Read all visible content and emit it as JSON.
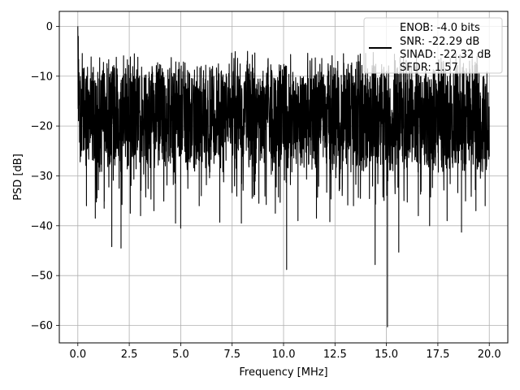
{
  "chart_data": {
    "type": "line",
    "title": "",
    "xlabel": "Frequency [MHz]",
    "ylabel": "PSD [dB]",
    "xlim": [
      -0.9,
      20.9
    ],
    "ylim": [
      -63.5,
      3.0
    ],
    "grid": true,
    "xticks": [
      0.0,
      2.5,
      5.0,
      7.5,
      10.0,
      12.5,
      15.0,
      17.5,
      20.0
    ],
    "xtick_labels": [
      "0.0",
      "2.5",
      "5.0",
      "7.5",
      "10.0",
      "12.5",
      "15.0",
      "17.5",
      "20.0"
    ],
    "yticks": [
      0,
      -10,
      -20,
      -30,
      -40,
      -50,
      -60
    ],
    "ytick_labels": [
      "0",
      "−10",
      "−20",
      "−30",
      "−40",
      "−50",
      "−60"
    ],
    "legend": {
      "position": "top-right",
      "lines": [
        "ENOB: -4.0 bits",
        "SNR: -22.29 dB",
        "SINAD: -22.32 dB",
        "SFDR: 1.57"
      ]
    },
    "series": [
      {
        "color": "#000000",
        "x_range": [
          0.0,
          20.0
        ],
        "typical_band": [
          -28,
          -8
        ],
        "start_values": [
          0.0,
          -8.0,
          -16.5,
          -2.0
        ],
        "deep_dips": [
          {
            "x": 0.42,
            "y": -36.0
          },
          {
            "x": 0.85,
            "y": -38.5
          },
          {
            "x": 1.28,
            "y": -36.5
          },
          {
            "x": 1.65,
            "y": -44.2
          },
          {
            "x": 2.1,
            "y": -44.5
          },
          {
            "x": 2.55,
            "y": -37.5
          },
          {
            "x": 3.05,
            "y": -38.0
          },
          {
            "x": 3.7,
            "y": -37.0
          },
          {
            "x": 4.75,
            "y": -39.5
          },
          {
            "x": 5.0,
            "y": -40.5
          },
          {
            "x": 5.9,
            "y": -36.0
          },
          {
            "x": 6.9,
            "y": -39.3
          },
          {
            "x": 7.95,
            "y": -39.5
          },
          {
            "x": 8.8,
            "y": -35.5
          },
          {
            "x": 9.6,
            "y": -37.5
          },
          {
            "x": 10.15,
            "y": -48.8
          },
          {
            "x": 10.7,
            "y": -39.0
          },
          {
            "x": 11.6,
            "y": -38.5
          },
          {
            "x": 12.25,
            "y": -39.2
          },
          {
            "x": 13.4,
            "y": -36.0
          },
          {
            "x": 14.45,
            "y": -47.8
          },
          {
            "x": 15.05,
            "y": -60.3
          },
          {
            "x": 15.6,
            "y": -45.3
          },
          {
            "x": 16.55,
            "y": -38.0
          },
          {
            "x": 17.1,
            "y": -40.0
          },
          {
            "x": 17.95,
            "y": -39.0
          },
          {
            "x": 18.65,
            "y": -41.3
          },
          {
            "x": 19.35,
            "y": -37.0
          },
          {
            "x": 19.8,
            "y": -36.0
          }
        ]
      }
    ]
  }
}
